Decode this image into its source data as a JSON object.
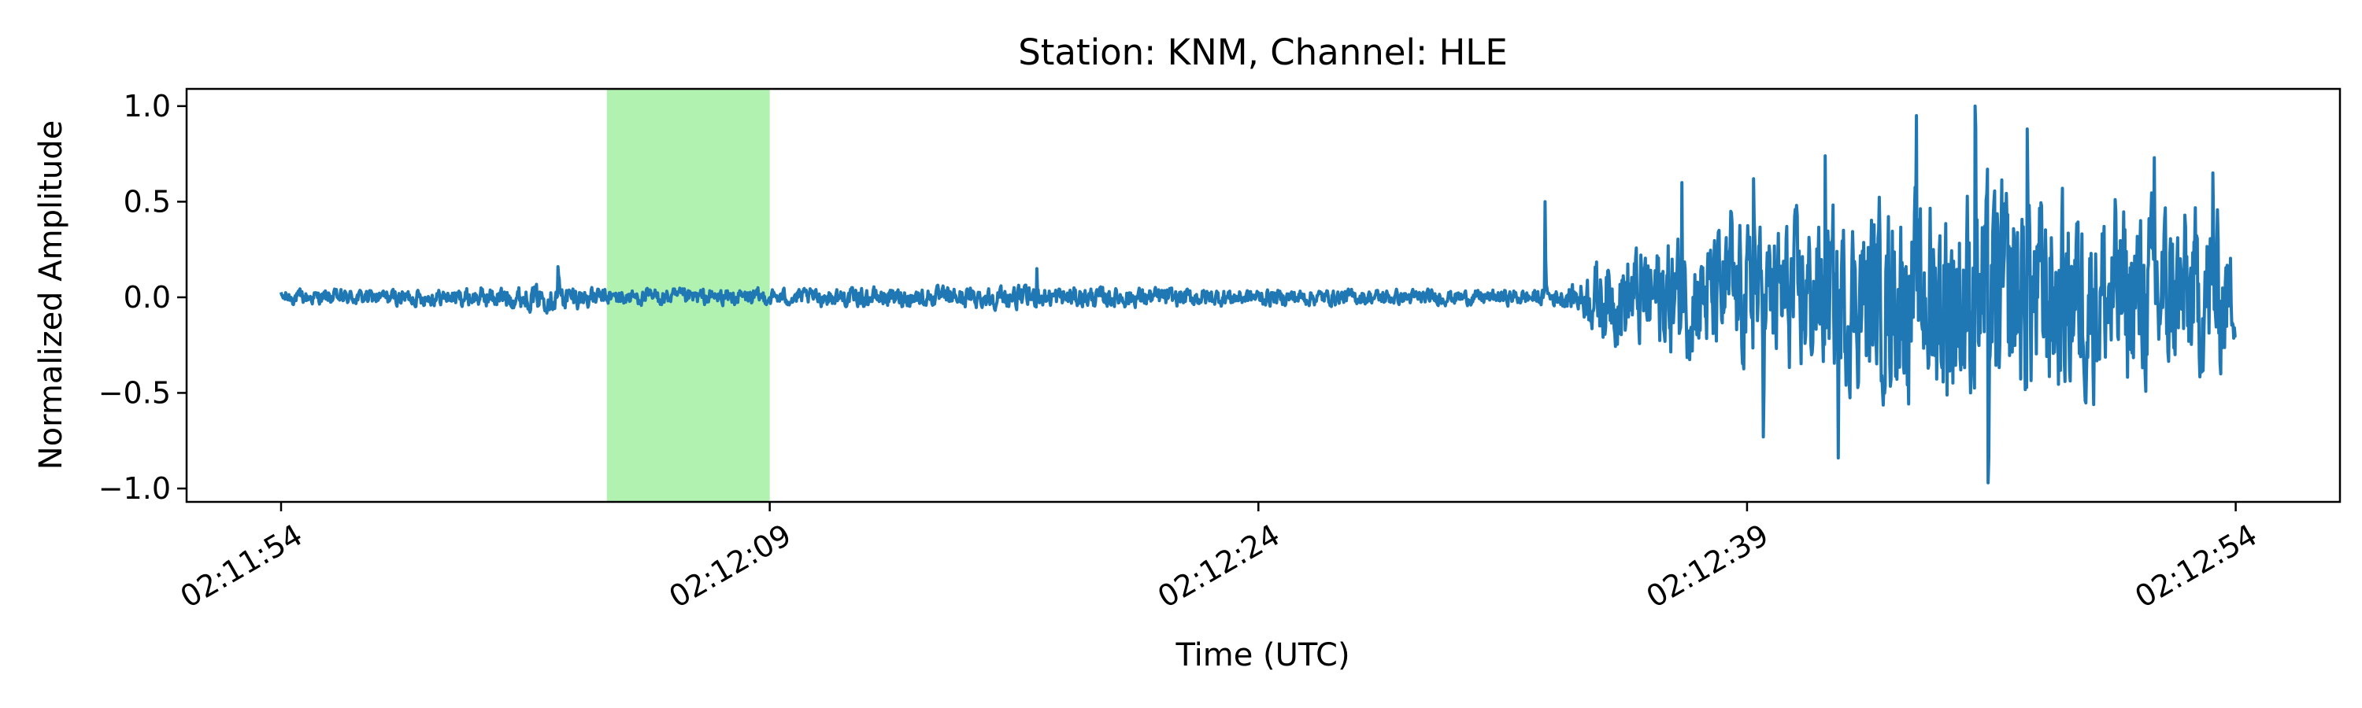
{
  "chart_data": {
    "type": "line",
    "title": "Station: KNM, Channel: HLE",
    "xlabel": "Time (UTC)",
    "ylabel": "Normalized Amplitude",
    "x_unit": "seconds",
    "x_tick_labels": [
      "02:11:54",
      "02:12:09",
      "02:12:24",
      "02:12:39",
      "02:12:54"
    ],
    "x_tick_values": [
      0,
      15,
      30,
      45,
      60
    ],
    "xlim": [
      -2.9,
      63.2
    ],
    "ylim": [
      -1.07,
      1.09
    ],
    "y_ticks": [
      1.0,
      0.5,
      0.0,
      -0.5,
      -1.0
    ],
    "y_tick_labels": [
      "1.0",
      "0.5",
      "0.0",
      "−0.5",
      "−1.0"
    ],
    "highlight": {
      "x_start": 10,
      "x_end": 15,
      "color": "#b2f2b0"
    },
    "series": [
      {
        "color": "#1f77b4",
        "x_range": [
          0,
          60
        ],
        "envelope": [
          [
            0,
            0.06
          ],
          [
            5,
            0.07
          ],
          [
            8.5,
            0.11
          ],
          [
            10,
            0.07
          ],
          [
            15,
            0.07
          ],
          [
            23,
            0.09
          ],
          [
            30,
            0.07
          ],
          [
            37,
            0.06
          ],
          [
            39,
            0.07
          ],
          [
            39.8,
            0.12
          ],
          [
            40.5,
            0.35
          ],
          [
            42,
            0.45
          ],
          [
            46,
            0.62
          ],
          [
            48,
            0.72
          ],
          [
            52,
            0.95
          ],
          [
            56,
            0.8
          ],
          [
            59.5,
            0.7
          ],
          [
            60,
            0.3
          ]
        ],
        "peaks": [
          [
            8.5,
            0.16
          ],
          [
            23.2,
            0.15
          ],
          [
            38.8,
            0.5
          ],
          [
            43,
            0.6
          ],
          [
            44.5,
            0.45
          ],
          [
            45.2,
            0.62
          ],
          [
            45.5,
            -0.73
          ],
          [
            47.4,
            0.74
          ],
          [
            47.8,
            -0.84
          ],
          [
            50.2,
            0.95
          ],
          [
            52,
            1.0
          ],
          [
            52.4,
            -0.97
          ],
          [
            53.6,
            0.88
          ],
          [
            57.5,
            0.73
          ],
          [
            59.3,
            0.65
          ]
        ],
        "sample_interval": 0.02
      }
    ],
    "grid": false,
    "legend": "none"
  }
}
